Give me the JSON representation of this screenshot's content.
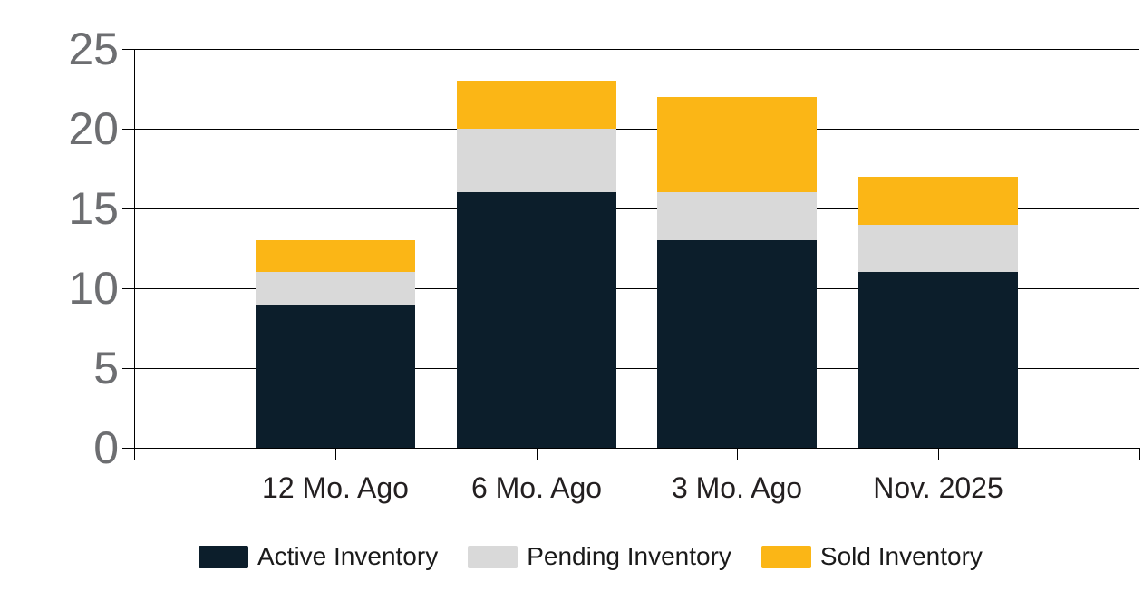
{
  "chart_data": {
    "type": "bar",
    "stacked": true,
    "title": "",
    "categories": [
      "12 Mo. Ago",
      "6 Mo. Ago",
      "3 Mo. Ago",
      "Nov. 2025"
    ],
    "series": [
      {
        "name": "Active Inventory",
        "color": "#0C1E2B",
        "values": [
          9,
          16,
          13,
          11
        ]
      },
      {
        "name": "Pending Inventory",
        "color": "#D9D9D9",
        "values": [
          2,
          4,
          3,
          3
        ]
      },
      {
        "name": "Sold Inventory",
        "color": "#FBB616",
        "values": [
          2,
          3,
          6,
          3
        ]
      }
    ],
    "stack_totals": [
      13,
      23,
      22,
      17
    ],
    "y_axis": {
      "min": 0,
      "max": 25,
      "step": 5,
      "tick_labels": [
        "0",
        "5",
        "10",
        "15",
        "20",
        "25"
      ]
    },
    "x_axis": {
      "tick_labels": [
        "12 Mo. Ago",
        "6 Mo. Ago",
        "3 Mo. Ago",
        "Nov. 2025"
      ]
    },
    "grid": true,
    "legend_position": "bottom",
    "legend": [
      "Active Inventory",
      "Pending Inventory",
      "Sold Inventory"
    ]
  },
  "colors": {
    "background": "#FFFFFF",
    "grid_line": "#000000",
    "y_tick_label": "#6D6E71",
    "x_tick_label": "#231F20",
    "legend_text": "#1A1A1A",
    "active_inventory": "#0C1E2B",
    "pending_inventory": "#D9D9D9",
    "sold_inventory": "#FBB616"
  }
}
